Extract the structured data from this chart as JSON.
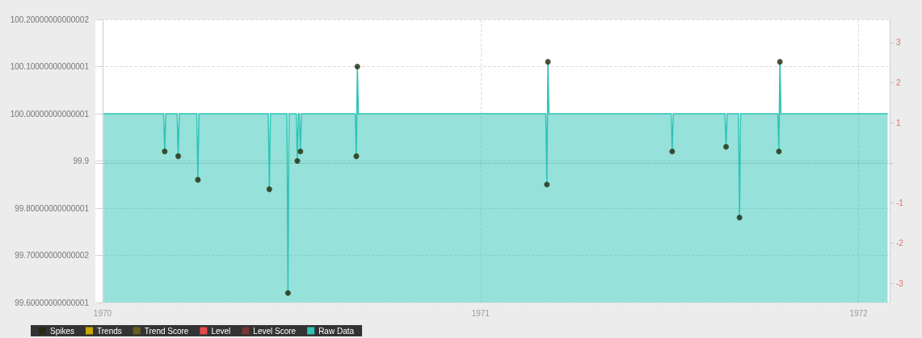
{
  "chart_data": {
    "type": "area",
    "xlim": [
      "1969-12-25",
      "1972-01-31"
    ],
    "xticks": [
      "1970",
      "1971",
      "1972"
    ],
    "ylim": [
      99.6,
      100.2
    ],
    "yticks": [
      {
        "value": 99.6,
        "label": "99.60000000000001"
      },
      {
        "value": 99.7,
        "label": "99.70000000000002"
      },
      {
        "value": 99.8,
        "label": "99.80000000000001"
      },
      99.9,
      {
        "value": 100.0,
        "label": "100.00000000000001"
      },
      {
        "value": 100.1,
        "label": "100.10000000000001"
      },
      {
        "value": 100.2,
        "label": "100.20000000000002"
      }
    ],
    "y2lim": [
      -3.48,
      3.58
    ],
    "y2ticks": [
      -3,
      -2,
      -1,
      {
        "value": 0,
        "label": null
      },
      1,
      2,
      3
    ],
    "grid": true,
    "legend": "bottom left",
    "series": [
      {
        "name": "Spikes",
        "type": "scatter",
        "marker": "circle",
        "color": "#1f2a0a",
        "x": [
          "1970-03-02",
          "1970-03-15",
          "1970-04-03",
          "1970-06-11",
          "1970-06-29",
          "1970-07-08",
          "1970-07-11",
          "1970-09-03",
          "1970-09-04",
          "1971-03-06",
          "1971-03-07",
          "1971-07-05",
          "1971-08-26",
          "1971-09-08",
          "1971-10-16",
          "1971-10-17"
        ],
        "values": [
          99.92,
          99.91,
          99.86,
          99.84,
          99.62,
          99.9,
          99.92,
          99.91,
          100.1,
          99.85,
          100.11,
          99.92,
          99.93,
          99.78,
          99.92,
          100.11
        ]
      },
      {
        "name": "Trends",
        "type": "line",
        "color": "#c9a800"
      },
      {
        "name": "Trend Score",
        "type": "line",
        "color": "#6b5d1f"
      },
      {
        "name": "Level",
        "type": "line",
        "color": "#e8474c"
      },
      {
        "name": "Level Score",
        "type": "line",
        "color": "#7a3535"
      },
      {
        "name": "Raw Data",
        "marker": "none",
        "color": "#2ec4b6",
        "x": [
          "1970-01-02",
          "1970-03-01",
          "1970-03-02",
          "1970-03-03",
          "1970-03-14",
          "1970-03-15",
          "1970-03-16",
          "1970-04-02",
          "1970-04-03",
          "1970-04-04",
          "1970-06-10",
          "1970-06-11",
          "1970-06-12",
          "1970-06-28",
          "1970-06-29",
          "1970-06-30",
          "1970-07-07",
          "1970-07-08",
          "1970-07-09",
          "1970-07-10",
          "1970-07-11",
          "1970-07-12",
          "1970-09-02",
          "1970-09-03",
          "1970-09-04",
          "1970-09-05",
          "1971-03-05",
          "1971-03-06",
          "1971-03-07",
          "1971-03-08",
          "1971-07-04",
          "1971-07-05",
          "1971-07-06",
          "1971-08-25",
          "1971-08-26",
          "1971-08-27",
          "1971-09-07",
          "1971-09-08",
          "1971-09-09",
          "1971-10-15",
          "1971-10-16",
          "1971-10-17",
          "1971-10-18",
          "1972-01-29"
        ],
        "values": [
          100.0,
          100.0,
          99.92,
          100.0,
          100.0,
          99.91,
          100.0,
          100.0,
          99.86,
          100.0,
          100.0,
          99.84,
          100.0,
          100.0,
          99.62,
          100.0,
          100.0,
          99.9,
          100.0,
          100.0,
          99.92,
          100.0,
          100.0,
          99.91,
          100.1,
          100.0,
          100.0,
          99.85,
          100.11,
          100.0,
          100.0,
          99.92,
          100.0,
          100.0,
          99.93,
          100.0,
          100.0,
          99.78,
          100.0,
          100.0,
          99.92,
          100.11,
          100.0,
          100.0
        ]
      }
    ]
  }
}
